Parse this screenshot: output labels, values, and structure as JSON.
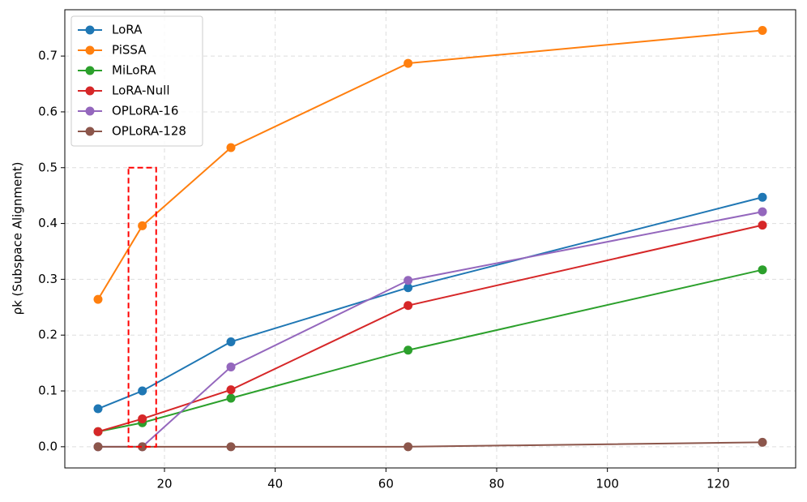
{
  "chart_data": {
    "type": "line",
    "ylabel": "ρk (Subspace Alignment)",
    "x": [
      8,
      16,
      32,
      64,
      128
    ],
    "series": [
      {
        "name": "LoRA",
        "color": "#1f77b4",
        "values": [
          0.068,
          0.1,
          0.188,
          0.285,
          0.447
        ]
      },
      {
        "name": "PiSSA",
        "color": "#ff7f0e",
        "values": [
          0.264,
          0.396,
          0.536,
          0.687,
          0.746
        ]
      },
      {
        "name": "MiLoRA",
        "color": "#2ca02c",
        "values": [
          0.027,
          0.043,
          0.087,
          0.173,
          0.317
        ]
      },
      {
        "name": "LoRA-Null",
        "color": "#d62728",
        "values": [
          0.027,
          0.05,
          0.102,
          0.253,
          0.397
        ]
      },
      {
        "name": "OPLoRA-16",
        "color": "#9467bd",
        "values": [
          0,
          0,
          0.143,
          0.298,
          0.421
        ]
      },
      {
        "name": "OPLoRA-128",
        "color": "#8c564b",
        "values": [
          0,
          0,
          0,
          0,
          0.008
        ]
      }
    ],
    "highlight": {
      "x": [
        13.5,
        18.5
      ],
      "y": [
        0,
        0.5
      ],
      "color": "#ff0000"
    },
    "xlim": [
      2,
      134
    ],
    "xticks": [
      20,
      40,
      60,
      80,
      100,
      120
    ],
    "ylim": [
      -0.038,
      0.783
    ],
    "yticks": [
      {
        "value": 0,
        "label": "0.0"
      },
      0.1,
      0.2,
      0.3,
      0.4,
      0.5,
      0.6,
      0.7
    ],
    "grid": true,
    "legend": "upper left"
  }
}
